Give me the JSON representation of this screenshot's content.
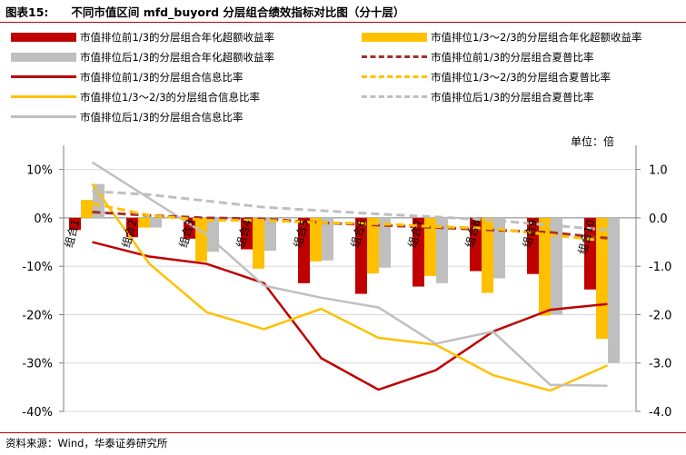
{
  "header": {
    "figure_no": "图表15:",
    "title": "不同市值区间 mfd_buyord 分层组合绩效指标对比图（分十层）"
  },
  "legend": [
    {
      "label": "市值排位前1/3的分层组合年化超额收益率",
      "kind": "bar",
      "color": "#c00000"
    },
    {
      "label": "市值排位1/3～2/3的分层组合年化超额收益率",
      "kind": "bar",
      "color": "#ffc000"
    },
    {
      "label": "市值排位后1/3的分层组合年化超额收益率",
      "kind": "bar",
      "color": "#bfbfbf"
    },
    {
      "label": "市值排位前1/3的分层组合夏普比率",
      "kind": "dash",
      "color": "#a5312d"
    },
    {
      "label": "市值排位前1/3的分层组合信息比率",
      "kind": "line",
      "color": "#c00000"
    },
    {
      "label": "市值排位1/3～2/3的分层组合夏普比率",
      "kind": "dash",
      "color": "#ffc000"
    },
    {
      "label": "市值排位1/3～2/3的分层组合信息比率",
      "kind": "line",
      "color": "#ffc000"
    },
    {
      "label": "市值排位后1/3的分层组合夏普比率",
      "kind": "dash",
      "color": "#bfbfbf"
    },
    {
      "label": "市值排位后1/3的分层组合信息比率",
      "kind": "line",
      "color": "#bfbfbf"
    }
  ],
  "unit_label": "单位：倍",
  "source": "资料来源：Wind，华泰证券研究所",
  "chart_data": {
    "type": "bar",
    "categories": [
      "组合1",
      "组合2",
      "组合3",
      "组合4",
      "组合5",
      "组合6",
      "组合7",
      "组合8",
      "组合9",
      "组合10"
    ],
    "ylim_left": [
      -40,
      15
    ],
    "yticks_left": [
      "10%",
      "0%",
      "-10%",
      "-20%",
      "-30%",
      "-40%"
    ],
    "yticks_left_values": [
      10,
      0,
      -10,
      -20,
      -30,
      -40
    ],
    "ylim_right": [
      -4.0,
      1.5
    ],
    "yticks_right": [
      "1.0",
      "0.0",
      "-1.0",
      "-2.0",
      "-3.0",
      "-4.0"
    ],
    "yticks_right_values": [
      1.0,
      0.0,
      -1.0,
      -2.0,
      -3.0,
      -4.0
    ],
    "grid": true,
    "bar_series": [
      {
        "name": "市值排位前1/3的分层组合年化超额收益率",
        "color": "#c00000",
        "values": [
          -2.5,
          -4.0,
          -4.3,
          -6.5,
          -13.5,
          -15.7,
          -14.2,
          -11.0,
          -11.6,
          -14.8
        ]
      },
      {
        "name": "市值排位1/3～2/3的分层组合年化超额收益率",
        "color": "#ffc000",
        "values": [
          3.7,
          -2.0,
          -9.0,
          -10.5,
          -9.0,
          -11.5,
          -12.0,
          -15.5,
          -20.2,
          -25.0
        ]
      },
      {
        "name": "市值排位后1/3的分层组合年化超额收益率",
        "color": "#bfbfbf",
        "values": [
          7.0,
          -2.0,
          -7.0,
          -6.8,
          -8.8,
          -10.3,
          -13.5,
          -12.5,
          -20.0,
          -30.0
        ]
      }
    ],
    "line_series": [
      {
        "name": "市值排位前1/3的分层组合信息比率",
        "color": "#c00000",
        "style": "solid",
        "values": [
          -0.5,
          -0.8,
          -0.95,
          -1.35,
          -2.9,
          -3.55,
          -3.15,
          -2.35,
          -1.9,
          -1.78
        ]
      },
      {
        "name": "市值排位1/3～2/3的分层组合信息比率",
        "color": "#ffc000",
        "style": "solid",
        "values": [
          0.7,
          -0.95,
          -1.95,
          -2.3,
          -1.88,
          -2.48,
          -2.62,
          -3.25,
          -3.57,
          -3.05
        ]
      },
      {
        "name": "市值排位后1/3的分层组合信息比率",
        "color": "#bfbfbf",
        "style": "solid",
        "values": [
          1.15,
          0.4,
          -0.35,
          -1.4,
          -1.65,
          -1.85,
          -2.6,
          -2.35,
          -3.45,
          -3.47
        ]
      },
      {
        "name": "市值排位前1/3的分层组合夏普比率",
        "color": "#a5312d",
        "style": "dash",
        "values": [
          0.12,
          0.05,
          0.0,
          -0.02,
          -0.1,
          -0.15,
          -0.2,
          -0.25,
          -0.3,
          -0.42
        ]
      },
      {
        "name": "市值排位1/3～2/3的分层组合夏普比率",
        "color": "#ffc000",
        "style": "dash",
        "values": [
          0.3,
          0.05,
          -0.05,
          -0.05,
          -0.1,
          -0.12,
          -0.18,
          -0.22,
          -0.35,
          -0.48
        ]
      },
      {
        "name": "市值排位后1/3的分层组合夏普比率",
        "color": "#bfbfbf",
        "style": "dash",
        "values": [
          0.55,
          0.48,
          0.35,
          0.22,
          0.15,
          0.08,
          0.02,
          -0.05,
          -0.15,
          -0.25
        ]
      }
    ]
  }
}
